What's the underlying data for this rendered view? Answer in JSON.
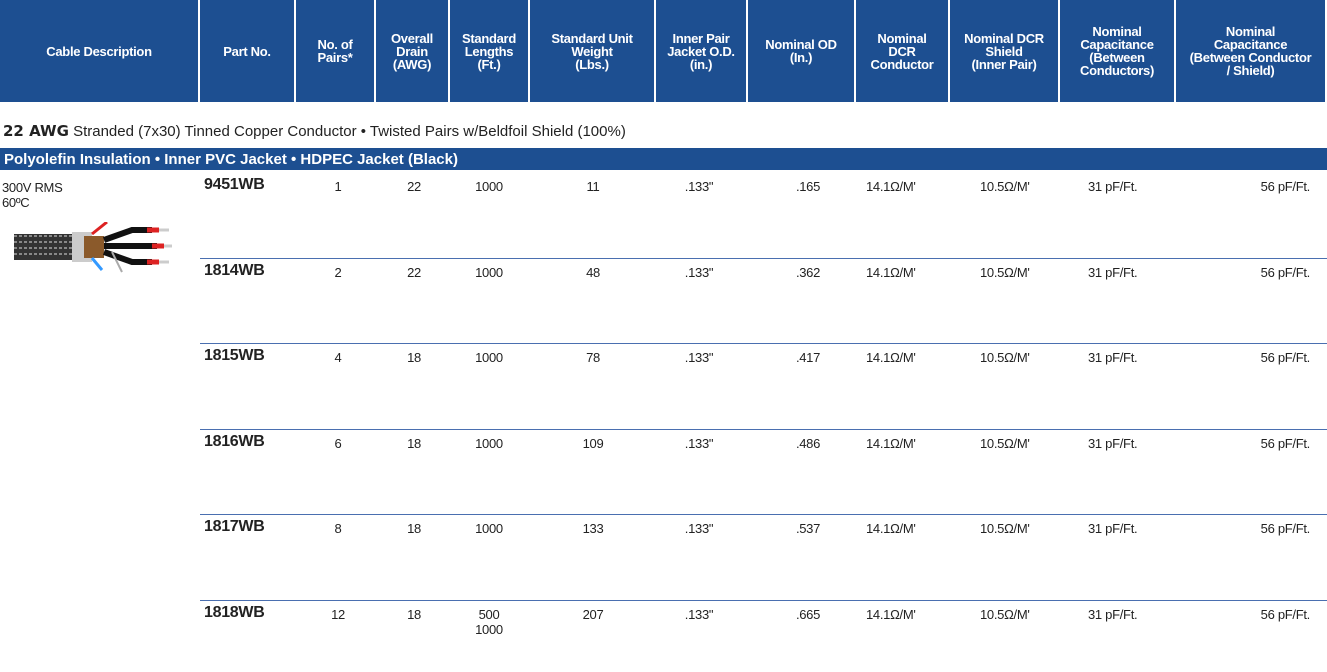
{
  "header": {
    "columns": [
      [
        "Cable Description"
      ],
      [
        "Part No."
      ],
      [
        "No. of",
        "Pairs*"
      ],
      [
        "Overall",
        "Drain",
        "(AWG)"
      ],
      [
        "Standard",
        "Lengths",
        "(Ft.)"
      ],
      [
        "Standard Unit",
        "Weight",
        "(Lbs.)"
      ],
      [
        "Inner Pair",
        "Jacket O.D.",
        "(in.)"
      ],
      [
        "Nominal OD",
        "(In.)"
      ],
      [
        "Nominal",
        "DCR",
        "Conductor"
      ],
      [
        "Nominal DCR",
        "Shield",
        "(Inner Pair)"
      ],
      [
        "Nominal",
        "Capacitance",
        "(Between",
        "Conductors)"
      ],
      [
        "Nominal",
        "Capacitance",
        "(Between Conductor",
        "/ Shield)"
      ]
    ]
  },
  "section": {
    "awg": "22 AWG",
    "text": "Stranded (7x30) Tinned Copper Conductor  •  Twisted Pairs w/Beldfoil Shield (100%)"
  },
  "subsection": "Polyolefin Insulation  •  Inner PVC Jacket  •  HDPEC Jacket (Black)",
  "description": [
    "300V RMS",
    "60ºC"
  ],
  "rows": [
    [
      "9451WB",
      "1",
      "22",
      [
        "1000"
      ],
      "11",
      ".133\"",
      ".165",
      "14.1Ω/M'",
      "10.5Ω/M'",
      "31 pF/Ft.",
      "56 pF/Ft."
    ],
    [
      "1814WB",
      "2",
      "22",
      [
        "1000"
      ],
      "48",
      ".133\"",
      ".362",
      "14.1Ω/M'",
      "10.5Ω/M'",
      "31 pF/Ft.",
      "56 pF/Ft."
    ],
    [
      "1815WB",
      "4",
      "18",
      [
        "1000"
      ],
      "78",
      ".133\"",
      ".417",
      "14.1Ω/M'",
      "10.5Ω/M'",
      "31 pF/Ft.",
      "56 pF/Ft."
    ],
    [
      "1816WB",
      "6",
      "18",
      [
        "1000"
      ],
      "109",
      ".133\"",
      ".486",
      "14.1Ω/M'",
      "10.5Ω/M'",
      "31 pF/Ft.",
      "56 pF/Ft."
    ],
    [
      "1817WB",
      "8",
      "18",
      [
        "1000"
      ],
      "133",
      ".133\"",
      ".537",
      "14.1Ω/M'",
      "10.5Ω/M'",
      "31 pF/Ft.",
      "56 pF/Ft."
    ],
    [
      "1818WB",
      "12",
      "18",
      [
        "500",
        "1000"
      ],
      "207",
      ".133\"",
      ".665",
      "14.1Ω/M'",
      "10.5Ω/M'",
      "31 pF/Ft.",
      "56 pF/Ft."
    ]
  ]
}
